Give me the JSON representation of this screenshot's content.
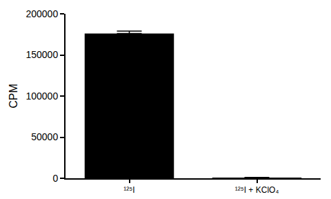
{
  "chart_data": {
    "type": "bar",
    "y_label": "CPM",
    "categories": [
      "¹²⁵I",
      "¹²⁵I + KClO₄"
    ],
    "values": [
      176000,
      800
    ],
    "errors": [
      3000,
      200
    ],
    "color": "#000000",
    "ylim": [
      0,
      200000
    ],
    "yticks": [
      0,
      50000,
      100000,
      150000,
      200000
    ],
    "grid": false
  }
}
